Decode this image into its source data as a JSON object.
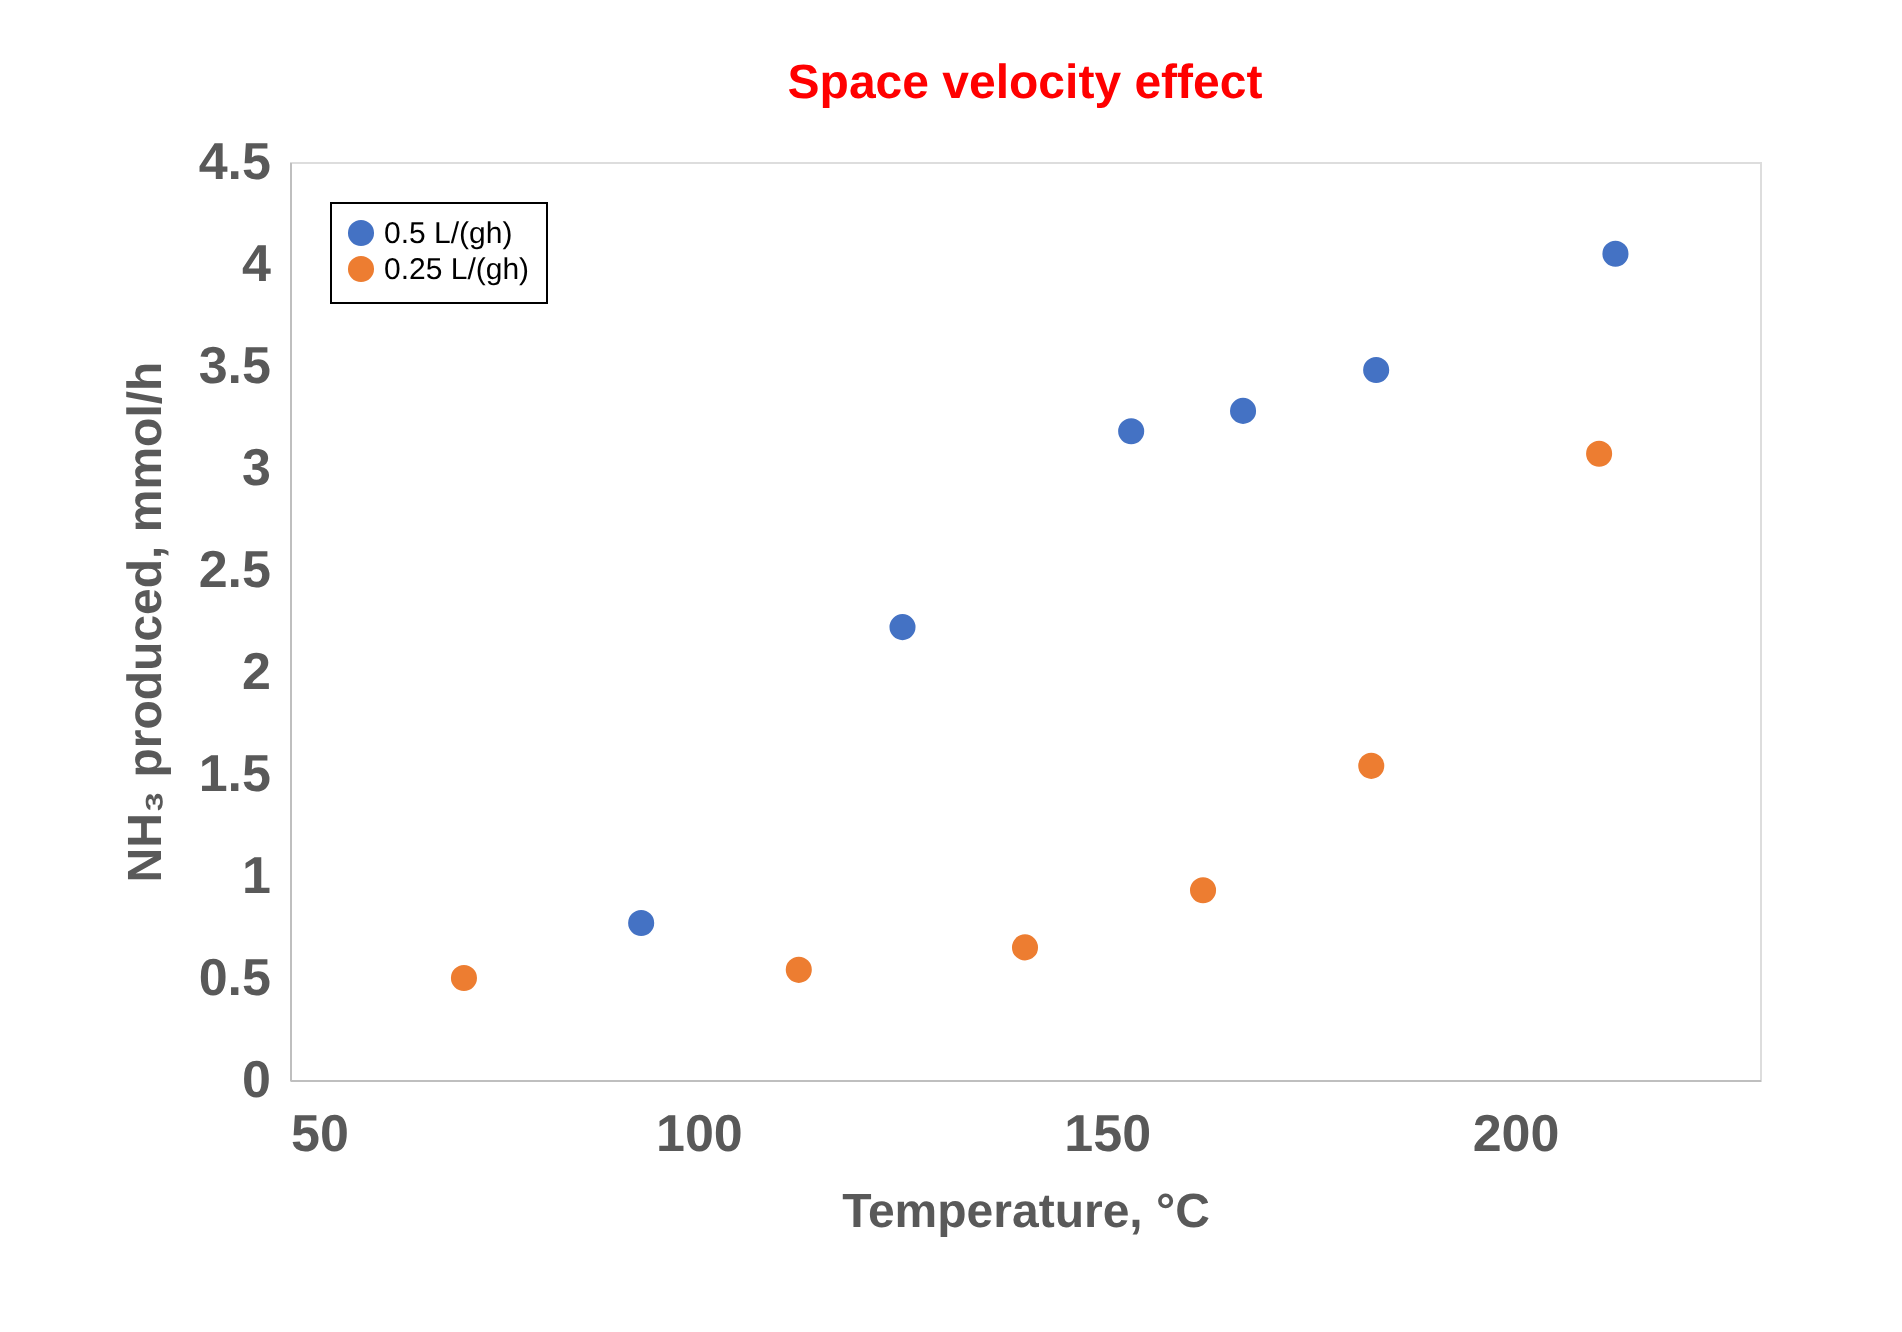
{
  "chart_data": {
    "type": "scatter",
    "title": "Space velocity effect",
    "xlabel": "Temperature, °C",
    "ylabel": "NH₃ produced, mmol/h",
    "xlim": [
      50,
      230
    ],
    "xticks": [
      50,
      100,
      150,
      200
    ],
    "ylim": [
      0,
      4.5
    ],
    "yticks": [
      {
        "value": 0,
        "label": "0"
      },
      0.5,
      {
        "value": 1,
        "label": "1"
      },
      1.5,
      {
        "value": 2,
        "label": "2"
      },
      2.5,
      {
        "value": 3,
        "label": "3"
      },
      3.5,
      {
        "value": 4,
        "label": "4"
      },
      4.5
    ],
    "grid": false,
    "legend": "top left",
    "marker": "circle",
    "series": [
      {
        "name": "0.5 L/(gh)",
        "color": "#4472c4",
        "x": [
          93,
          125,
          153,
          166.7,
          183,
          212.3
        ],
        "values": [
          0.77,
          2.22,
          3.18,
          3.28,
          3.48,
          4.05
        ]
      },
      {
        "name": "0.25 L/(gh)",
        "color": "#ed7d31",
        "x": [
          71.3,
          112.3,
          140,
          161.8,
          182.4,
          210.3
        ],
        "values": [
          0.5,
          0.54,
          0.65,
          0.93,
          1.54,
          3.07
        ]
      }
    ]
  }
}
